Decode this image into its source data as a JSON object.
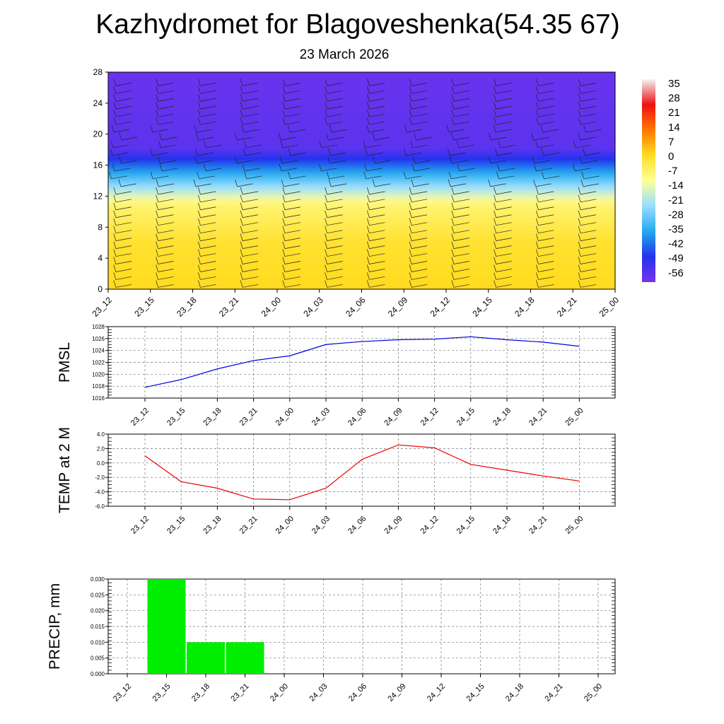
{
  "header": {
    "title": "Kazhydromet for Blagoveshenka(54.35 67)",
    "subtitle": "23 March 2026"
  },
  "colors": {
    "pmsl_line": "#0000dd",
    "temp_line": "#ee0000",
    "precip_bar": "#00ee00",
    "grid": "#777777",
    "wind_barb": "#222222"
  },
  "chart_data": [
    {
      "id": "cross_section",
      "type": "heatmap",
      "title": "",
      "xlabel": "",
      "ylabel": "",
      "x_ticks": [
        "23_12",
        "23_15",
        "23_18",
        "23_21",
        "24_00",
        "24_03",
        "24_06",
        "24_09",
        "24_12",
        "24_15",
        "24_18",
        "24_21",
        "25_00"
      ],
      "y_ticks": [
        "0",
        "4",
        "8",
        "12",
        "16",
        "20",
        "24",
        "28"
      ],
      "ylim": [
        0,
        28
      ],
      "colorbar_labels": [
        "35",
        "28",
        "21",
        "14",
        "7",
        "0",
        "-7",
        "-14",
        "-21",
        "-28",
        "-35",
        "-42",
        "-49",
        "-56"
      ],
      "colorbar_range": [
        -60,
        40
      ],
      "colorbar_stops": [
        "#f4f4f4",
        "#ee1111",
        "#ff7700",
        "#ffdd22",
        "#ffff99",
        "#99ddff",
        "#22aaee",
        "#2233ee",
        "#7733ee"
      ],
      "approx_levels": [
        {
          "height": 0,
          "temp": 3
        },
        {
          "height": 6,
          "temp": 1
        },
        {
          "height": 11,
          "temp": -6
        },
        {
          "height": 12,
          "temp": -14
        },
        {
          "height": 14,
          "temp": -28
        },
        {
          "height": 16,
          "temp": -42
        },
        {
          "height": 18,
          "temp": -56
        },
        {
          "height": 28,
          "temp": -58
        }
      ],
      "wind_barbs": true
    },
    {
      "id": "pmsl",
      "type": "line",
      "ylabel": "PMSL",
      "categories": [
        "23_12",
        "23_15",
        "23_18",
        "23_21",
        "24_00",
        "24_03",
        "24_06",
        "24_09",
        "24_12",
        "24_15",
        "24_18",
        "24_21",
        "25_00"
      ],
      "y_ticks": [
        "1016",
        "1018",
        "1020",
        "1022",
        "1024",
        "1026",
        "1028"
      ],
      "ylim": [
        1016,
        1028
      ],
      "series": [
        {
          "values": [
            1017.8,
            1019.1,
            1020.9,
            1022.3,
            1023.1,
            1025.0,
            1025.5,
            1025.8,
            1025.9,
            1026.3,
            1025.8,
            1025.4,
            1024.7
          ]
        }
      ]
    },
    {
      "id": "temp2m",
      "type": "line",
      "ylabel": "TEMP at 2 M",
      "categories": [
        "23_12",
        "23_15",
        "23_18",
        "23_21",
        "24_00",
        "24_03",
        "24_06",
        "24_09",
        "24_12",
        "24_15",
        "24_18",
        "24_21",
        "25_00"
      ],
      "y_ticks": [
        "-6.0",
        "-4.0",
        "-2.0",
        "0.0",
        "2.0",
        "4.0"
      ],
      "ylim": [
        -6,
        4
      ],
      "series": [
        {
          "values": [
            1.0,
            -2.6,
            -3.5,
            -5.0,
            -5.1,
            -3.5,
            0.5,
            2.5,
            2.1,
            -0.2,
            -1.0,
            -1.8,
            -2.5
          ]
        }
      ]
    },
    {
      "id": "precip",
      "type": "bar",
      "ylabel": "PRECIP, mm",
      "categories": [
        "23_12",
        "23_15",
        "23_18",
        "23_21",
        "24_00",
        "24_03",
        "24_06",
        "24_09",
        "24_12",
        "24_15",
        "24_18",
        "24_21",
        "25_00"
      ],
      "y_ticks": [
        "0.000",
        "0.005",
        "0.010",
        "0.015",
        "0.020",
        "0.025",
        "0.030"
      ],
      "ylim": [
        0,
        0.03
      ],
      "values": [
        0,
        0.03,
        0.01,
        0.01,
        0,
        0,
        0,
        0,
        0,
        0,
        0,
        0,
        0
      ]
    }
  ]
}
